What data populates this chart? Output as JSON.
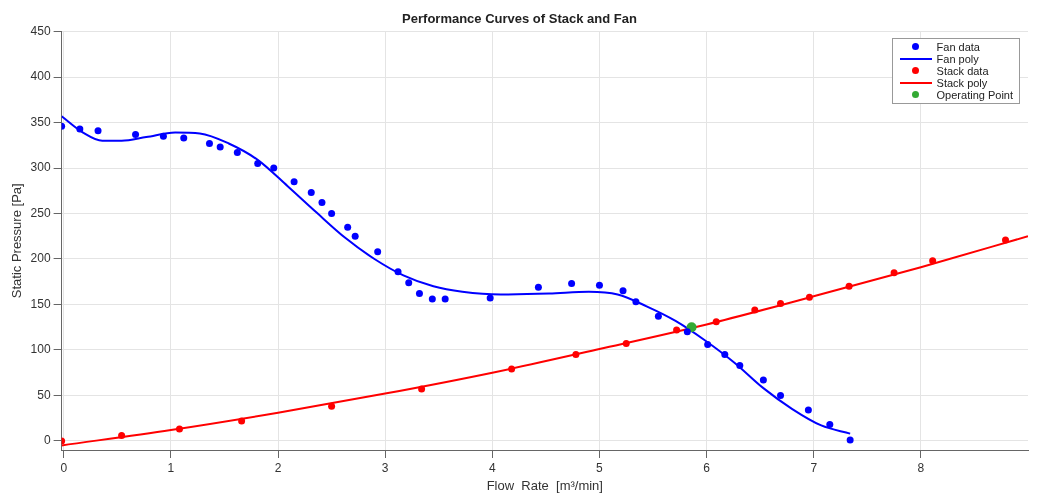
{
  "chart_data": {
    "type": "scatter",
    "title": "Performance Curves of Stack and Fan",
    "xlabel": "Flow  Rate  [m³/min]",
    "ylabel": "Static Pressure [Pa]",
    "xlim": [
      -0.02,
      9
    ],
    "ylim": [
      -10,
      450
    ],
    "xticks": [
      0,
      1,
      2,
      3,
      4,
      5,
      6,
      7,
      8
    ],
    "yticks": [
      0,
      50,
      100,
      150,
      200,
      250,
      300,
      350,
      400,
      450
    ],
    "grid": true,
    "legend": "top right",
    "series": [
      {
        "name": "Fan data",
        "type": "scatter",
        "marker": "circle",
        "color": "#0000ff",
        "x": [
          -0.02,
          0.15,
          0.32,
          0.67,
          0.93,
          1.12,
          1.36,
          1.46,
          1.62,
          1.81,
          1.96,
          2.15,
          2.31,
          2.41,
          2.5,
          2.65,
          2.72,
          2.93,
          3.12,
          3.22,
          3.32,
          3.44,
          3.56,
          3.98,
          4.43,
          4.74,
          5.0,
          5.22,
          5.34,
          5.55,
          5.82,
          6.01,
          6.17,
          6.31,
          6.53,
          6.69,
          6.95,
          7.15,
          7.34
        ],
        "values": [
          346,
          343,
          341,
          337,
          335,
          333,
          327,
          323,
          317,
          305,
          300,
          285,
          273,
          262,
          250,
          235,
          225,
          208,
          186,
          174,
          162,
          156,
          156,
          157,
          169,
          173,
          171,
          165,
          153,
          137,
          120,
          106,
          95,
          83,
          67,
          50,
          34,
          18,
          1
        ]
      },
      {
        "name": "Fan poly",
        "type": "line",
        "marker": "none",
        "line_style": "solid",
        "color": "#0000ff",
        "x": [
          -0.02,
          0.18,
          0.36,
          0.54,
          0.77,
          1.04,
          1.27,
          1.54,
          1.81,
          2.09,
          2.36,
          2.63,
          2.9,
          3.17,
          3.45,
          3.72,
          4.08,
          4.53,
          4.9,
          5.17,
          5.44,
          5.71,
          5.98,
          6.26,
          6.53,
          6.8,
          7.07,
          7.34
        ],
        "values": [
          357,
          339,
          330,
          330,
          334,
          339,
          338,
          327,
          309,
          280,
          251,
          223,
          200,
          182,
          170,
          164,
          161,
          162,
          164,
          161,
          148,
          132,
          111,
          86,
          58,
          35,
          17,
          8
        ]
      },
      {
        "name": "Stack data",
        "type": "scatter",
        "marker": "circle",
        "color": "#ff0000",
        "x": [
          -0.02,
          0.54,
          1.08,
          1.66,
          2.5,
          3.34,
          4.18,
          4.78,
          5.25,
          5.72,
          6.09,
          6.45,
          6.69,
          6.96,
          7.33,
          7.75,
          8.11,
          8.79
        ],
        "values": [
          0,
          6,
          13,
          22,
          38,
          57,
          79,
          95,
          107,
          122,
          131,
          144,
          151,
          158,
          170,
          185,
          198,
          221
        ]
      },
      {
        "name": "Stack poly",
        "type": "line",
        "marker": "none",
        "line_style": "solid",
        "color": "#ff0000",
        "x": [
          -0.02,
          1,
          2,
          3,
          4,
          5,
          6,
          7,
          8,
          9
        ],
        "values": [
          -5,
          12,
          31,
          52,
          75,
          101,
          128,
          159,
          191,
          225
        ]
      },
      {
        "name": "Operating Point",
        "type": "scatter",
        "marker": "circle",
        "color": "#33aa33",
        "x": [
          5.86
        ],
        "values": [
          125
        ]
      }
    ]
  }
}
